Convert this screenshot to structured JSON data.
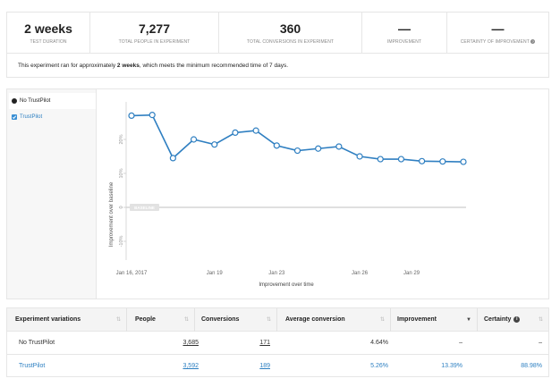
{
  "stats": [
    {
      "value": "2 weeks",
      "label": "TEST DURATION"
    },
    {
      "value": "7,277",
      "label": "TOTAL PEOPLE IN EXPERIMENT"
    },
    {
      "value": "360",
      "label": "TOTAL CONVERSIONS IN EXPERIMENT"
    },
    {
      "value": "—",
      "label": "IMPROVEMENT"
    },
    {
      "value": "—",
      "label": "CERTAINTY OF IMPROVEMENT",
      "icon": "help-icon"
    }
  ],
  "notice": {
    "before": "This experiment ran for approximately ",
    "bold": "2 weeks",
    "after": ", which meets the minimum recommended time of 7 days."
  },
  "legend": {
    "items": [
      {
        "label": "No TrustPilot",
        "icon": "radio-dot-icon"
      },
      {
        "label": "TrustPilot",
        "icon": "checkbox-checked-icon"
      }
    ]
  },
  "chart_data": {
    "type": "line",
    "title": "",
    "xlabel": "Improvement over time",
    "ylabel": "Improvement over baseline",
    "x": [
      0,
      1,
      2,
      3,
      4,
      5,
      6,
      7,
      8,
      9,
      10,
      11,
      12,
      13,
      14,
      15,
      16
    ],
    "x_ticks": [
      {
        "x": 0,
        "label": "Jan 16, 2017"
      },
      {
        "x": 4,
        "label": "Jan 19"
      },
      {
        "x": 7,
        "label": "Jan 23"
      },
      {
        "x": 11,
        "label": "Jan 26"
      },
      {
        "x": 13.5,
        "label": "Jan 29"
      }
    ],
    "y_ticks": [
      {
        "y": 20,
        "label": "20%"
      },
      {
        "y": 10,
        "label": "10%"
      },
      {
        "y": 0,
        "label": "0"
      },
      {
        "y": -10,
        "label": "-10%"
      }
    ],
    "ylim": [
      -15,
      30
    ],
    "baseline_label": "BASELINE",
    "series": [
      {
        "name": "TrustPilot",
        "color": "#2f7fc1",
        "values": [
          27,
          27.2,
          14.5,
          20,
          18.5,
          22,
          22.6,
          18.2,
          16.7,
          17.3,
          17.9,
          15,
          14.2,
          14.2,
          13.6,
          13.5,
          13.4
        ]
      }
    ]
  },
  "table": {
    "headers": [
      "Experiment variations",
      "People",
      "Conversions",
      "Average conversion",
      "Improvement",
      "Certainty"
    ],
    "rows": [
      {
        "variation": "No TrustPilot",
        "people": "3,685",
        "conversions": "171",
        "avg": "4.64%",
        "improvement": "–",
        "certainty": "–"
      },
      {
        "variation": "TrustPilot",
        "people": "3,592",
        "conversions": "189",
        "avg": "5.26%",
        "improvement": "13.39%",
        "certainty": "88.98%"
      }
    ]
  },
  "colors": {
    "accent": "#2f7fc1",
    "border": "#e6e6e6"
  }
}
